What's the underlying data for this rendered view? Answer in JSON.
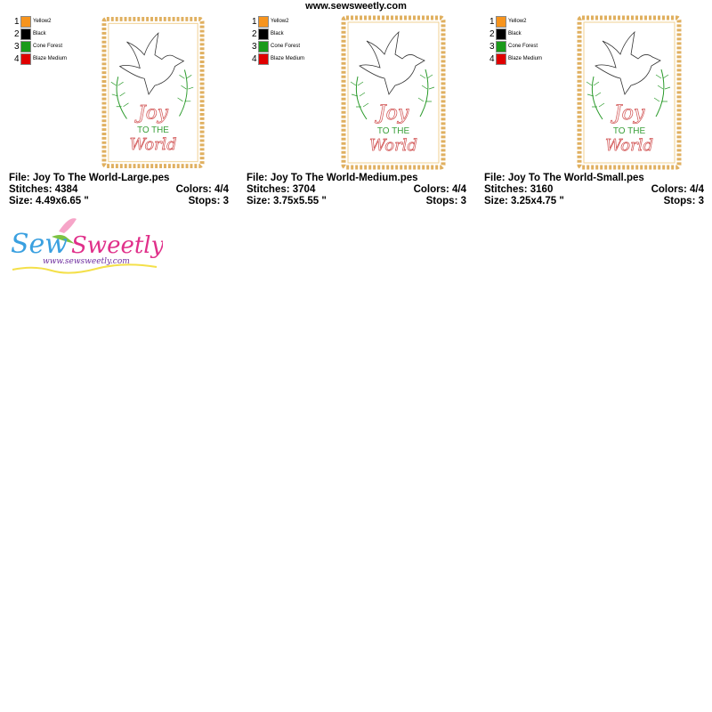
{
  "site_url": "www.sewsweetly.com",
  "colors_legend": [
    {
      "num": "1",
      "name": "Yellow2",
      "color": "#f7941d"
    },
    {
      "num": "2",
      "name": "Black",
      "color": "#000000"
    },
    {
      "num": "3",
      "name": "Cone Forest",
      "color": "#1a9a1a"
    },
    {
      "num": "4",
      "name": "Blaze Medium",
      "color": "#e00000"
    }
  ],
  "designs": [
    {
      "file": "File: Joy To The World-Large.pes",
      "stitches": "Stitches: 4384",
      "colors": "Colors: 4/4",
      "size": "Size: 4.49x6.65 \"",
      "stops": "Stops: 3"
    },
    {
      "file": "File: Joy To The World-Medium.pes",
      "stitches": "Stitches: 3704",
      "colors": "Colors: 4/4",
      "size": "Size: 3.75x5.55 \"",
      "stops": "Stops: 3"
    },
    {
      "file": "File: Joy To The World-Small.pes",
      "stitches": "Stitches: 3160",
      "colors": "Colors: 4/4",
      "size": "Size: 3.25x4.75 \"",
      "stops": "Stops: 3"
    }
  ],
  "artwork_text": {
    "joy": "Joy",
    "to_the": "TO THE",
    "world": "World"
  },
  "logo": {
    "brand": "Sew Sweetly",
    "url": "www.sewsweetly.com"
  }
}
